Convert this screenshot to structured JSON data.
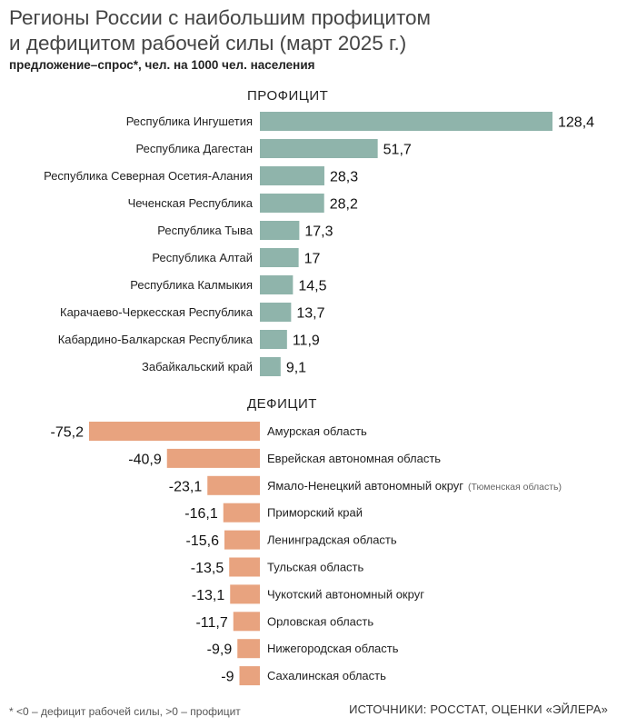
{
  "title_line1": "Регионы России с наибольшим профицитом",
  "title_line2": "и дефицитом рабочей силы (март 2025 г.)",
  "subtitle": "предложение–спрос*, чел. на 1000 чел. населения",
  "footnote": "* <0 – дефицит рабочей силы, >0 – профицит",
  "source": "ИСТОЧНИКИ: РОССТАТ, ОЦЕНКИ «ЭЙЛЕРА»",
  "colors": {
    "surplus": "#8fb4ab",
    "deficit": "#e8a37f"
  },
  "chart_data": [
    {
      "type": "bar",
      "orientation": "horizontal",
      "section_label": "ПРОФИЦИТ",
      "categories": [
        "Республика Ингушетия",
        "Республика Дагестан",
        "Республика Северная Осетия-Алания",
        "Чеченская Республика",
        "Республика Тыва",
        "Республика Алтай",
        "Республика Калмыкия",
        "Карачаево-Черкесская Республика",
        "Кабардино-Балкарская Республика",
        "Забайкальский край"
      ],
      "values": [
        128.4,
        51.7,
        28.3,
        28.2,
        17.3,
        17,
        14.5,
        13.7,
        11.9,
        9.1
      ],
      "value_labels": [
        "128,4",
        "51,7",
        "28,3",
        "28,2",
        "17,3",
        "17",
        "14,5",
        "13,7",
        "11,9",
        "9,1"
      ]
    },
    {
      "type": "bar",
      "orientation": "horizontal",
      "section_label": "ДЕФИЦИТ",
      "categories": [
        "Амурская область",
        "Еврейская автономная область",
        "Ямало-Ненецкий автономный округ",
        "Приморский край",
        "Ленинградская область",
        "Тульская область",
        "Чукотский автономный округ",
        "Орловская область",
        "Нижегородская область",
        "Сахалинская область"
      ],
      "category_notes": [
        "",
        "",
        "(Тюменская область)",
        "",
        "",
        "",
        "",
        "",
        "",
        ""
      ],
      "values": [
        -75.2,
        -40.9,
        -23.1,
        -16.1,
        -15.6,
        -13.5,
        -13.1,
        -11.7,
        -9.9,
        -9
      ],
      "value_labels": [
        "-75,2",
        "-40,9",
        "-23,1",
        "-16,1",
        "-15,6",
        "-13,5",
        "-13,1",
        "-11,7",
        "-9,9",
        "-9"
      ]
    }
  ]
}
